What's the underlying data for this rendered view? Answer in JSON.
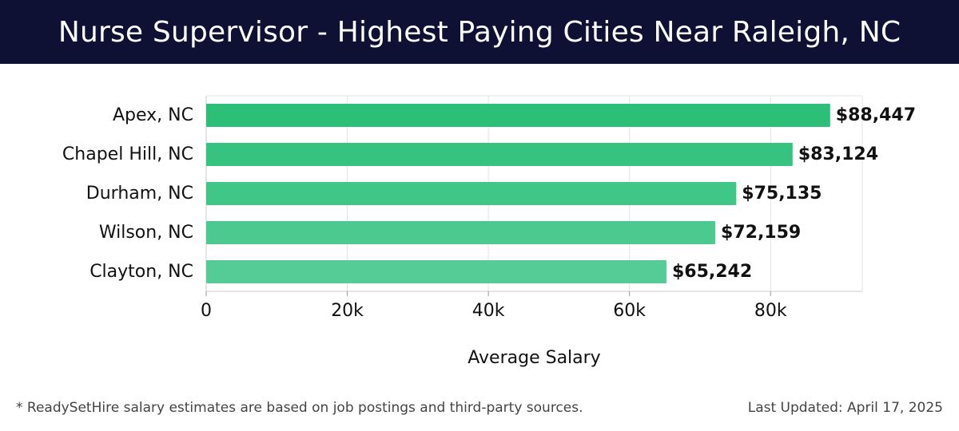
{
  "header": {
    "title": "Nurse Supervisor - Highest Paying Cities Near Raleigh, NC"
  },
  "footer": {
    "note": "* ReadySetHire salary estimates are based on job postings and third-party sources.",
    "updated": "Last Updated: April 17, 2025"
  },
  "colors": {
    "header_bg": "#0e1134",
    "bar_top": "#2bbf78",
    "bar_bottom": "#55cc95",
    "text": "#111111"
  },
  "chart_data": {
    "type": "bar",
    "orientation": "horizontal",
    "categories": [
      "Apex, NC",
      "Chapel Hill, NC",
      "Durham, NC",
      "Wilson, NC",
      "Clayton, NC"
    ],
    "values": [
      88447,
      83124,
      75135,
      72159,
      65242
    ],
    "data_labels": [
      "$88,447",
      "$83,124",
      "$75,135",
      "$72,159",
      "$65,242"
    ],
    "xlabel": "Average Salary",
    "ylabel": "",
    "xlim": [
      0,
      93000
    ],
    "xticks": [
      0,
      20000,
      40000,
      60000,
      80000
    ],
    "xtick_labels": [
      "0",
      "20k",
      "40k",
      "60k",
      "80k"
    ],
    "grid": true
  }
}
